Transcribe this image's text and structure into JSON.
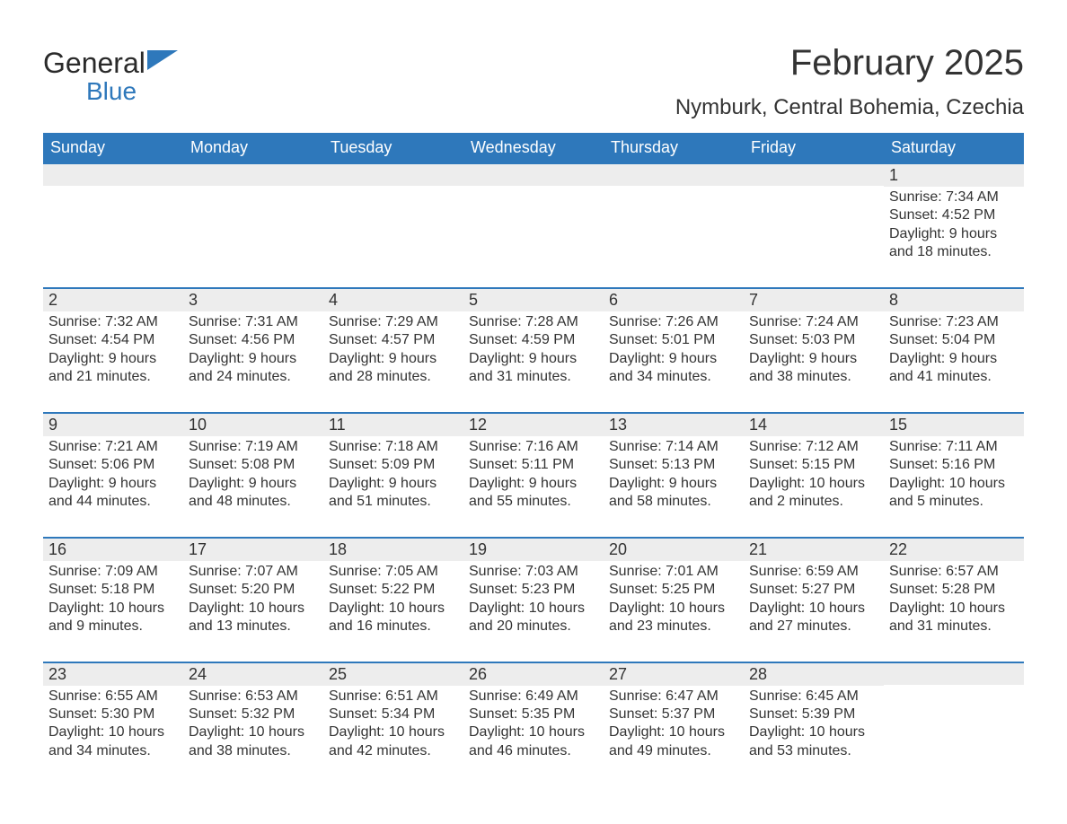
{
  "brand": {
    "word1": "General",
    "word2": "Blue",
    "text_color": "#2a2a2a",
    "blue_color": "#2e78bb",
    "flag_color": "#2e78bb"
  },
  "title": {
    "month": "February 2025",
    "location": "Nymburk, Central Bohemia, Czechia",
    "title_fontsize": 40,
    "location_fontsize": 24
  },
  "calendar": {
    "header_bg": "#2e78bb",
    "header_text_color": "#ffffff",
    "daynum_bg": "#ededed",
    "week_border_color": "#2e78bb",
    "text_color": "#333333",
    "columns": [
      "Sunday",
      "Monday",
      "Tuesday",
      "Wednesday",
      "Thursday",
      "Friday",
      "Saturday"
    ],
    "weeks": [
      [
        {
          "empty": true
        },
        {
          "empty": true
        },
        {
          "empty": true
        },
        {
          "empty": true
        },
        {
          "empty": true
        },
        {
          "empty": true
        },
        {
          "num": "1",
          "sunrise": "Sunrise: 7:34 AM",
          "sunset": "Sunset: 4:52 PM",
          "daylight1": "Daylight: 9 hours",
          "daylight2": "and 18 minutes."
        }
      ],
      [
        {
          "num": "2",
          "sunrise": "Sunrise: 7:32 AM",
          "sunset": "Sunset: 4:54 PM",
          "daylight1": "Daylight: 9 hours",
          "daylight2": "and 21 minutes."
        },
        {
          "num": "3",
          "sunrise": "Sunrise: 7:31 AM",
          "sunset": "Sunset: 4:56 PM",
          "daylight1": "Daylight: 9 hours",
          "daylight2": "and 24 minutes."
        },
        {
          "num": "4",
          "sunrise": "Sunrise: 7:29 AM",
          "sunset": "Sunset: 4:57 PM",
          "daylight1": "Daylight: 9 hours",
          "daylight2": "and 28 minutes."
        },
        {
          "num": "5",
          "sunrise": "Sunrise: 7:28 AM",
          "sunset": "Sunset: 4:59 PM",
          "daylight1": "Daylight: 9 hours",
          "daylight2": "and 31 minutes."
        },
        {
          "num": "6",
          "sunrise": "Sunrise: 7:26 AM",
          "sunset": "Sunset: 5:01 PM",
          "daylight1": "Daylight: 9 hours",
          "daylight2": "and 34 minutes."
        },
        {
          "num": "7",
          "sunrise": "Sunrise: 7:24 AM",
          "sunset": "Sunset: 5:03 PM",
          "daylight1": "Daylight: 9 hours",
          "daylight2": "and 38 minutes."
        },
        {
          "num": "8",
          "sunrise": "Sunrise: 7:23 AM",
          "sunset": "Sunset: 5:04 PM",
          "daylight1": "Daylight: 9 hours",
          "daylight2": "and 41 minutes."
        }
      ],
      [
        {
          "num": "9",
          "sunrise": "Sunrise: 7:21 AM",
          "sunset": "Sunset: 5:06 PM",
          "daylight1": "Daylight: 9 hours",
          "daylight2": "and 44 minutes."
        },
        {
          "num": "10",
          "sunrise": "Sunrise: 7:19 AM",
          "sunset": "Sunset: 5:08 PM",
          "daylight1": "Daylight: 9 hours",
          "daylight2": "and 48 minutes."
        },
        {
          "num": "11",
          "sunrise": "Sunrise: 7:18 AM",
          "sunset": "Sunset: 5:09 PM",
          "daylight1": "Daylight: 9 hours",
          "daylight2": "and 51 minutes."
        },
        {
          "num": "12",
          "sunrise": "Sunrise: 7:16 AM",
          "sunset": "Sunset: 5:11 PM",
          "daylight1": "Daylight: 9 hours",
          "daylight2": "and 55 minutes."
        },
        {
          "num": "13",
          "sunrise": "Sunrise: 7:14 AM",
          "sunset": "Sunset: 5:13 PM",
          "daylight1": "Daylight: 9 hours",
          "daylight2": "and 58 minutes."
        },
        {
          "num": "14",
          "sunrise": "Sunrise: 7:12 AM",
          "sunset": "Sunset: 5:15 PM",
          "daylight1": "Daylight: 10 hours",
          "daylight2": "and 2 minutes."
        },
        {
          "num": "15",
          "sunrise": "Sunrise: 7:11 AM",
          "sunset": "Sunset: 5:16 PM",
          "daylight1": "Daylight: 10 hours",
          "daylight2": "and 5 minutes."
        }
      ],
      [
        {
          "num": "16",
          "sunrise": "Sunrise: 7:09 AM",
          "sunset": "Sunset: 5:18 PM",
          "daylight1": "Daylight: 10 hours",
          "daylight2": "and 9 minutes."
        },
        {
          "num": "17",
          "sunrise": "Sunrise: 7:07 AM",
          "sunset": "Sunset: 5:20 PM",
          "daylight1": "Daylight: 10 hours",
          "daylight2": "and 13 minutes."
        },
        {
          "num": "18",
          "sunrise": "Sunrise: 7:05 AM",
          "sunset": "Sunset: 5:22 PM",
          "daylight1": "Daylight: 10 hours",
          "daylight2": "and 16 minutes."
        },
        {
          "num": "19",
          "sunrise": "Sunrise: 7:03 AM",
          "sunset": "Sunset: 5:23 PM",
          "daylight1": "Daylight: 10 hours",
          "daylight2": "and 20 minutes."
        },
        {
          "num": "20",
          "sunrise": "Sunrise: 7:01 AM",
          "sunset": "Sunset: 5:25 PM",
          "daylight1": "Daylight: 10 hours",
          "daylight2": "and 23 minutes."
        },
        {
          "num": "21",
          "sunrise": "Sunrise: 6:59 AM",
          "sunset": "Sunset: 5:27 PM",
          "daylight1": "Daylight: 10 hours",
          "daylight2": "and 27 minutes."
        },
        {
          "num": "22",
          "sunrise": "Sunrise: 6:57 AM",
          "sunset": "Sunset: 5:28 PM",
          "daylight1": "Daylight: 10 hours",
          "daylight2": "and 31 minutes."
        }
      ],
      [
        {
          "num": "23",
          "sunrise": "Sunrise: 6:55 AM",
          "sunset": "Sunset: 5:30 PM",
          "daylight1": "Daylight: 10 hours",
          "daylight2": "and 34 minutes."
        },
        {
          "num": "24",
          "sunrise": "Sunrise: 6:53 AM",
          "sunset": "Sunset: 5:32 PM",
          "daylight1": "Daylight: 10 hours",
          "daylight2": "and 38 minutes."
        },
        {
          "num": "25",
          "sunrise": "Sunrise: 6:51 AM",
          "sunset": "Sunset: 5:34 PM",
          "daylight1": "Daylight: 10 hours",
          "daylight2": "and 42 minutes."
        },
        {
          "num": "26",
          "sunrise": "Sunrise: 6:49 AM",
          "sunset": "Sunset: 5:35 PM",
          "daylight1": "Daylight: 10 hours",
          "daylight2": "and 46 minutes."
        },
        {
          "num": "27",
          "sunrise": "Sunrise: 6:47 AM",
          "sunset": "Sunset: 5:37 PM",
          "daylight1": "Daylight: 10 hours",
          "daylight2": "and 49 minutes."
        },
        {
          "num": "28",
          "sunrise": "Sunrise: 6:45 AM",
          "sunset": "Sunset: 5:39 PM",
          "daylight1": "Daylight: 10 hours",
          "daylight2": "and 53 minutes."
        },
        {
          "empty": true
        }
      ]
    ]
  }
}
